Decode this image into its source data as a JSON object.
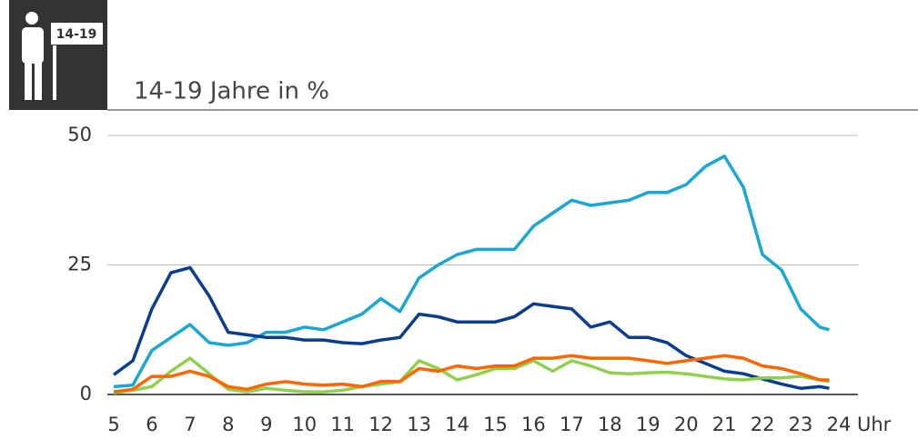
{
  "chart_data": {
    "type": "line",
    "title": "14-19 Jahre in %",
    "badge": "14-19",
    "x_label": "Uhr",
    "x": [
      5,
      5.5,
      6,
      6.5,
      7,
      7.5,
      8,
      8.5,
      9,
      9.5,
      10,
      10.5,
      11,
      11.5,
      12,
      12.5,
      13,
      13.5,
      14,
      14.5,
      15,
      15.5,
      16,
      16.5,
      17,
      17.5,
      18,
      18.5,
      19,
      19.5,
      20,
      20.5,
      21,
      21.5,
      22,
      22.5,
      23,
      23.5,
      23.75
    ],
    "series": [
      {
        "color": "#1aa7d6",
        "values": [
          1.5,
          1.8,
          8.5,
          11,
          13.5,
          10,
          9.5,
          10,
          12,
          12,
          13,
          12.5,
          14,
          15.5,
          18.5,
          16,
          22.5,
          25,
          27,
          28,
          28,
          28,
          32.5,
          35,
          37.5,
          36.5,
          37,
          37.5,
          39,
          39,
          40.5,
          44,
          46,
          40,
          27,
          24,
          16.5,
          13,
          12.5
        ]
      },
      {
        "color": "#0a3d8f",
        "values": [
          3.8,
          6.5,
          16.5,
          23.5,
          24.5,
          19,
          12,
          11.5,
          11,
          11,
          10.5,
          10.5,
          10,
          9.8,
          10.5,
          11,
          15.5,
          15,
          14,
          14,
          14,
          15,
          17.5,
          17,
          16.5,
          13,
          14,
          11,
          11,
          10,
          7.5,
          6,
          4.5,
          4,
          3,
          2,
          1.2,
          1.5,
          1.2
        ]
      },
      {
        "color": "#8fd14f",
        "values": [
          0.3,
          0.8,
          1.5,
          4.5,
          7,
          4,
          1,
          0.5,
          1.2,
          0.8,
          0.5,
          0.5,
          0.8,
          1.5,
          2,
          2.5,
          6.5,
          5,
          2.8,
          3.8,
          5,
          5,
          6.5,
          4.5,
          6.5,
          5.5,
          4.2,
          4,
          4.2,
          4.3,
          4,
          3.5,
          3,
          2.8,
          3.2,
          3.2,
          3.5,
          2.8,
          2.5
        ]
      },
      {
        "color": "#ff6600",
        "values": [
          0.5,
          1,
          3.5,
          3.5,
          4.5,
          3.5,
          1.5,
          1,
          2,
          2.5,
          2,
          1.8,
          2,
          1.5,
          2.5,
          2.5,
          5,
          4.5,
          5.5,
          5,
          5.5,
          5.5,
          7,
          7,
          7.5,
          7,
          7,
          7,
          6.5,
          6,
          6.5,
          7,
          7.5,
          7,
          5.5,
          5,
          4,
          2.8,
          2.8
        ]
      }
    ],
    "xlim": [
      5,
      24
    ],
    "xticks": [
      5,
      6,
      7,
      8,
      9,
      10,
      11,
      12,
      13,
      14,
      15,
      16,
      17,
      18,
      19,
      20,
      21,
      22,
      23,
      24
    ],
    "ylim": [
      0,
      50
    ],
    "yticks": [
      0,
      25,
      50
    ],
    "grid": true
  }
}
